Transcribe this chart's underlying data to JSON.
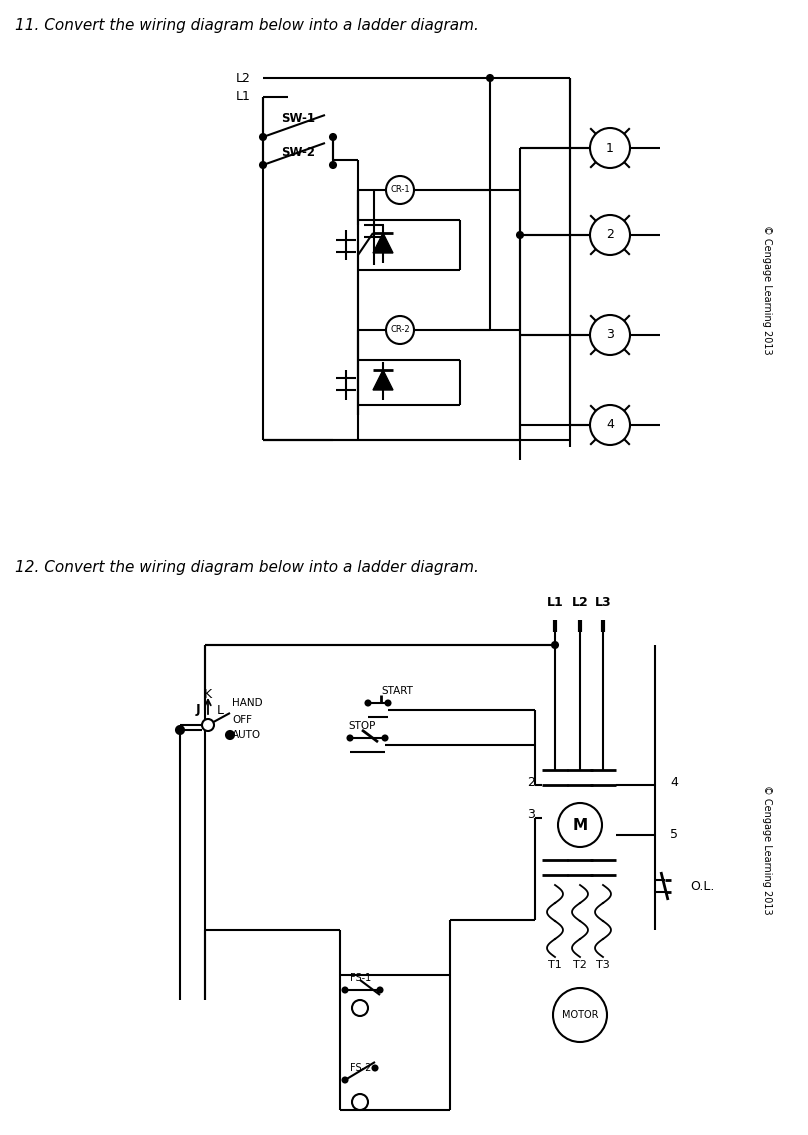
{
  "title1": "11. Convert the wiring diagram below into a ladder diagram.",
  "title2": "12. Convert the wiring diagram below into a ladder diagram.",
  "copyright": "© Cengage Learning 2013",
  "bg_color": "#ffffff",
  "fig_width": 8.08,
  "fig_height": 11.35
}
